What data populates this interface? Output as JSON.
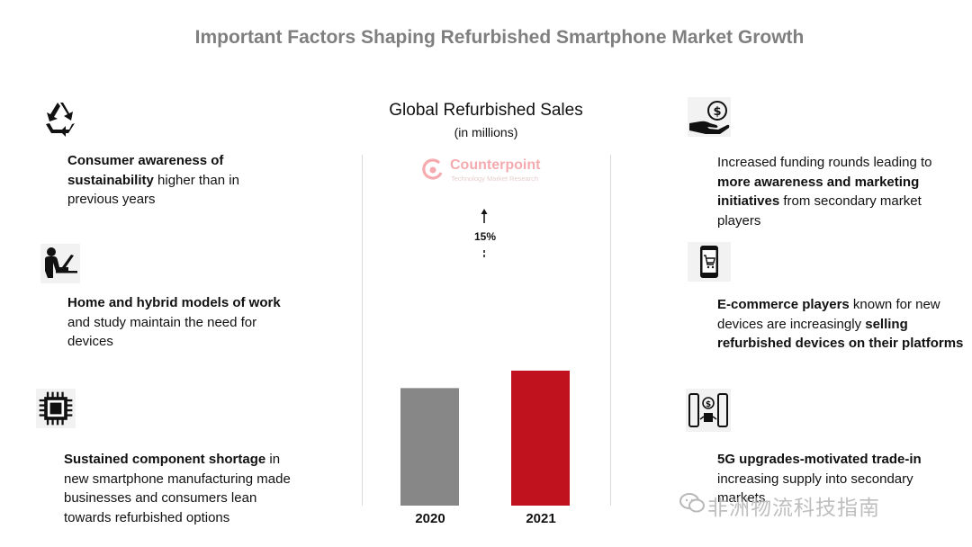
{
  "title": "Important Factors Shaping Refurbished Smartphone Market Growth",
  "left_factors": [
    {
      "icon": "recycle-icon",
      "bold": "Consumer awareness of sustainability",
      "rest": " higher than in previous years"
    },
    {
      "icon": "person-laptop-icon",
      "bold": "Home and hybrid models of work",
      "rest": " and study maintain the need for devices"
    },
    {
      "icon": "chip-icon",
      "bold": "Sustained component shortage",
      "rest": " in new smartphone manufacturing made businesses and consumers lean towards refurbished options"
    }
  ],
  "right_factors": {
    "funding": {
      "icon": "hand-money-icon",
      "t1": "Increased funding rounds leading to ",
      "b1": "more awareness and marketing initiatives",
      "t2": " from secondary market players"
    },
    "ecommerce": {
      "icon": "phone-cart-icon",
      "b1": "E-commerce players",
      "t1": " known for new devices are increasingly ",
      "b2": "selling refurbished devices on their platforms"
    },
    "tradein": {
      "icon": "phone-trade-icon",
      "b1": "5G upgrades-motivated trade-in",
      "t1": " increasing supply into secondary markets"
    }
  },
  "logo": {
    "name": "Counterpoint",
    "tagline": "Technology Market Research"
  },
  "watermark": "非洲物流科技指南",
  "chart_data": {
    "type": "bar",
    "title": "Global Refurbished Sales",
    "subtitle": "(in millions)",
    "categories": [
      "2020",
      "2021"
    ],
    "values": [
      81,
      93
    ],
    "colors": [
      "#878787",
      "#c0111f"
    ],
    "annotation": "15%",
    "ylim": [
      0,
      100
    ],
    "grid": false
  }
}
